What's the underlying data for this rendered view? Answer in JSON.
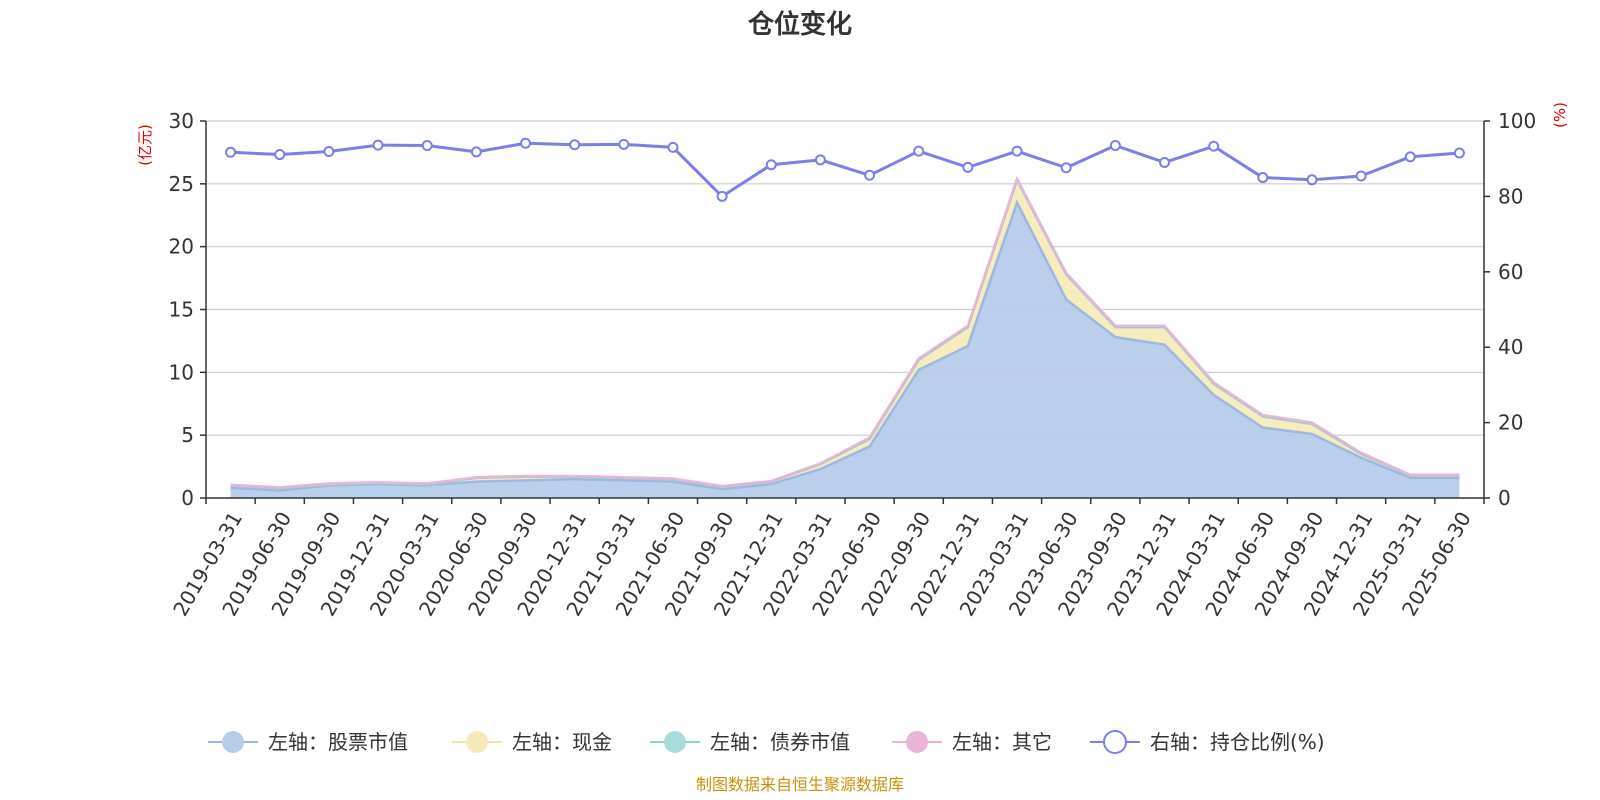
{
  "chart_data": {
    "type": "area",
    "title": "仓位变化",
    "left_unit": "(亿元)",
    "right_unit": "(%)",
    "source": "制图数据来自恒生聚源数据库",
    "categories": [
      "2019-03-31",
      "2019-06-30",
      "2019-09-30",
      "2019-12-31",
      "2020-03-31",
      "2020-06-30",
      "2020-09-30",
      "2020-12-31",
      "2021-03-31",
      "2021-06-30",
      "2021-09-30",
      "2021-12-31",
      "2022-03-31",
      "2022-06-30",
      "2022-09-30",
      "2022-12-31",
      "2023-03-31",
      "2023-06-30",
      "2023-09-30",
      "2023-12-31",
      "2024-03-31",
      "2024-06-30",
      "2024-09-30",
      "2024-12-31",
      "2025-03-31",
      "2025-06-30"
    ],
    "y_left": {
      "min": 0,
      "max": 30,
      "ticks": [
        0,
        5,
        10,
        15,
        20,
        25,
        30
      ]
    },
    "y_right": {
      "min": 0,
      "max": 100,
      "ticks": [
        0,
        20,
        40,
        60,
        80,
        100
      ]
    },
    "grid": true,
    "legend_position": "bottom",
    "series": [
      {
        "name": "左轴：股票市值",
        "axis": "left",
        "color": "#9db8e0",
        "fill": "#b6cceb",
        "values": [
          0.8,
          0.6,
          1.0,
          1.1,
          1.0,
          1.3,
          1.4,
          1.5,
          1.4,
          1.3,
          0.7,
          1.1,
          2.3,
          4.1,
          10.2,
          12.1,
          23.5,
          15.8,
          12.8,
          12.2,
          8.2,
          5.6,
          5.1,
          3.2,
          1.6,
          1.6
        ]
      },
      {
        "name": "左轴：现金",
        "axis": "left",
        "color": "#f4e4a4",
        "fill": "#f8eab8",
        "values": [
          0.2,
          0.2,
          0.1,
          0.1,
          0.1,
          0.3,
          0.3,
          0.2,
          0.2,
          0.2,
          0.2,
          0.2,
          0.4,
          0.6,
          0.8,
          1.5,
          1.8,
          2.0,
          0.8,
          1.4,
          0.9,
          0.9,
          0.8,
          0.3,
          0.2,
          0.2
        ]
      },
      {
        "name": "左轴：债券市值",
        "axis": "left",
        "color": "#8fd1d1",
        "fill": "#a6dcdc",
        "values": [
          0,
          0,
          0,
          0,
          0,
          0,
          0,
          0,
          0,
          0,
          0,
          0,
          0,
          0,
          0,
          0,
          0,
          0,
          0,
          0,
          0,
          0,
          0,
          0,
          0,
          0
        ]
      },
      {
        "name": "左轴：其它",
        "axis": "left",
        "color": "#e8b4d8",
        "fill": "#e8b4d8",
        "values": [
          0.05,
          0.05,
          0.05,
          0.05,
          0.05,
          0.05,
          0.05,
          0.05,
          0.05,
          0.05,
          0.05,
          0.05,
          0.05,
          0.1,
          0.1,
          0.1,
          0.1,
          0.1,
          0.1,
          0.1,
          0.1,
          0.1,
          0.1,
          0.1,
          0.05,
          0.05
        ]
      },
      {
        "name": "右轴：持仓比例(%)",
        "axis": "right",
        "color": "#7b7fe8",
        "values": [
          91.7,
          91.1,
          91.9,
          93.6,
          93.5,
          91.8,
          94.1,
          93.7,
          93.8,
          93.0,
          80.0,
          88.4,
          89.7,
          85.6,
          92.0,
          87.7,
          92.0,
          87.6,
          93.5,
          89.0,
          93.3,
          85.0,
          84.4,
          85.4,
          90.5,
          91.5
        ]
      }
    ]
  }
}
